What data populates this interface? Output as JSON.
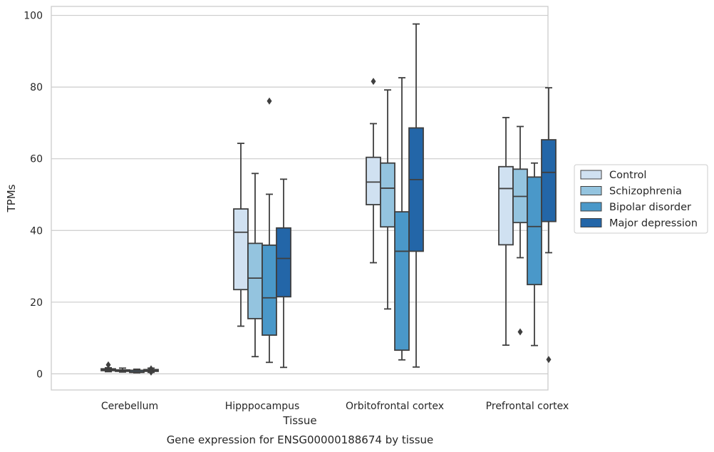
{
  "chart_data": {
    "type": "box",
    "xlabel": "Tissue",
    "ylabel": "TPMs",
    "caption": "Gene expression for ENSG00000188674 by tissue",
    "ylim": [
      -4.5,
      102.5
    ],
    "yticks": [
      0,
      20,
      40,
      60,
      80,
      100
    ],
    "grid": "horizontal",
    "legend_position": "right",
    "categories": [
      "Cerebellum",
      "Hipppocampus",
      "Orbitofrontal cortex",
      "Prefrontal cortex"
    ],
    "series": [
      {
        "name": "Control",
        "color": "#d0e1f1",
        "boxes": [
          {
            "whislo": 0.6,
            "q1": 0.9,
            "med": 1.1,
            "q3": 1.4,
            "whishi": 1.7,
            "fliers": [
              2.5
            ]
          },
          {
            "whislo": 13.3,
            "q1": 23.5,
            "med": 39.5,
            "q3": 46.0,
            "whishi": 64.3,
            "fliers": []
          },
          {
            "whislo": 31.0,
            "q1": 47.2,
            "med": 53.5,
            "q3": 60.4,
            "whishi": 69.8,
            "fliers": [
              81.6
            ]
          },
          {
            "whislo": 8.0,
            "q1": 36.0,
            "med": 51.7,
            "q3": 57.8,
            "whishi": 71.5,
            "fliers": []
          }
        ]
      },
      {
        "name": "Schizophrenia",
        "color": "#94c4df",
        "boxes": [
          {
            "whislo": 0.5,
            "q1": 0.7,
            "med": 0.9,
            "q3": 1.1,
            "whishi": 1.6,
            "fliers": []
          },
          {
            "whislo": 4.8,
            "q1": 15.4,
            "med": 26.7,
            "q3": 36.4,
            "whishi": 55.9,
            "fliers": []
          },
          {
            "whislo": 18.1,
            "q1": 41.0,
            "med": 51.8,
            "q3": 58.8,
            "whishi": 79.2,
            "fliers": []
          },
          {
            "whislo": 32.4,
            "q1": 42.2,
            "med": 49.5,
            "q3": 57.1,
            "whishi": 69.0,
            "fliers": [
              11.7
            ]
          }
        ]
      },
      {
        "name": "Bipolar disorder",
        "color": "#4a98c9",
        "boxes": [
          {
            "whislo": 0.3,
            "q1": 0.4,
            "med": 0.6,
            "q3": 1.0,
            "whishi": 1.3,
            "fliers": []
          },
          {
            "whislo": 3.2,
            "q1": 10.8,
            "med": 21.2,
            "q3": 35.9,
            "whishi": 50.1,
            "fliers": [
              76.1
            ]
          },
          {
            "whislo": 3.9,
            "q1": 6.6,
            "med": 34.2,
            "q3": 45.2,
            "whishi": 82.6,
            "fliers": []
          },
          {
            "whislo": 7.9,
            "q1": 24.9,
            "med": 41.1,
            "q3": 54.9,
            "whishi": 58.8,
            "fliers": []
          }
        ]
      },
      {
        "name": "Major depression",
        "color": "#2366a8",
        "boxes": [
          {
            "whislo": 0.4,
            "q1": 0.7,
            "med": 0.9,
            "q3": 1.2,
            "whishi": 1.6,
            "fliers": [
              1.4,
              0.5
            ]
          },
          {
            "whislo": 1.8,
            "q1": 21.5,
            "med": 32.2,
            "q3": 40.7,
            "whishi": 54.3,
            "fliers": []
          },
          {
            "whislo": 1.9,
            "q1": 34.2,
            "med": 54.2,
            "q3": 68.6,
            "whishi": 97.6,
            "fliers": []
          },
          {
            "whislo": 33.8,
            "q1": 42.5,
            "med": 56.2,
            "q3": 65.3,
            "whishi": 79.8,
            "fliers": [
              4.0
            ]
          }
        ]
      }
    ]
  }
}
